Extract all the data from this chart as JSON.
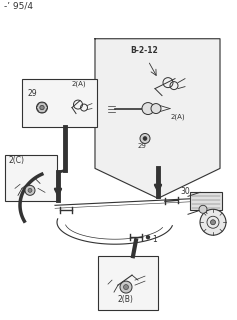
{
  "bg_color": "#ffffff",
  "title_text": "-’ 95/4",
  "dark": "#333333",
  "gray": "#666666",
  "light": "#f2f2f2",
  "label_B212": "B-2-12",
  "label_1": "1",
  "label_29": "29",
  "label_30": "30",
  "label_2A": "2(A)",
  "label_2B": "2(B)",
  "label_2C": "2(C)"
}
